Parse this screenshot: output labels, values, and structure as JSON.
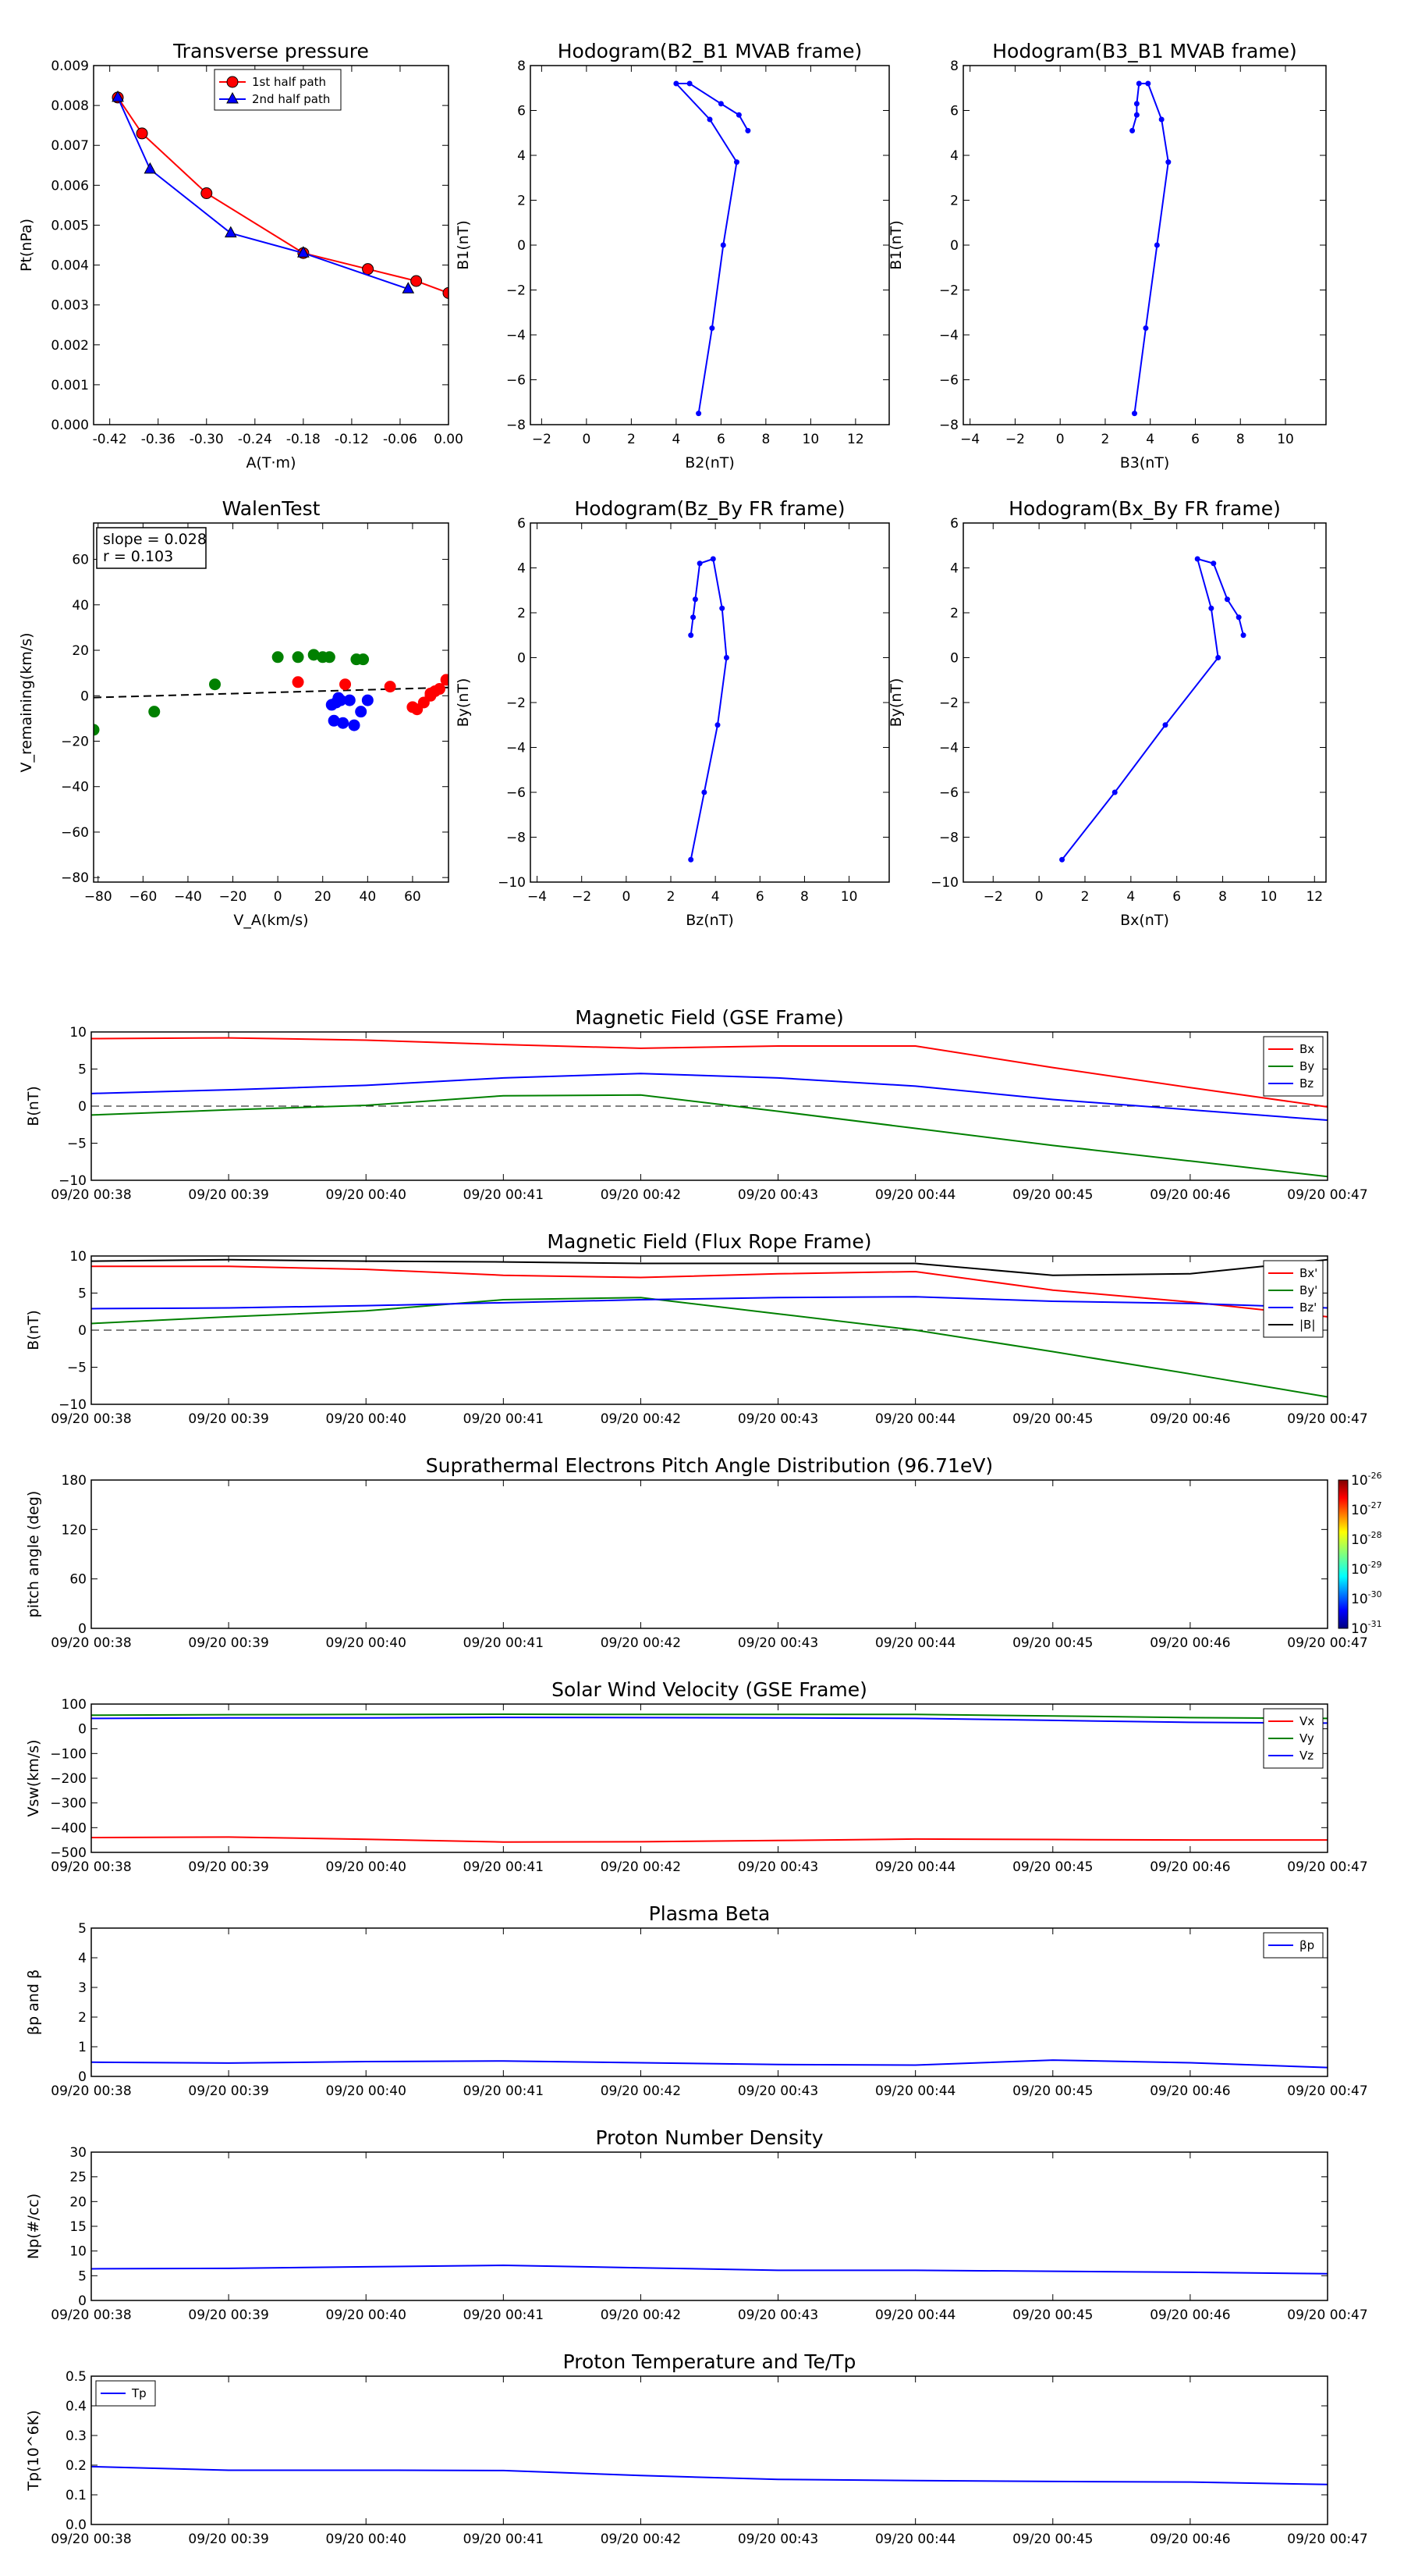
{
  "time_labels": [
    "09/20 00:38",
    "09/20 00:39",
    "09/20 00:40",
    "09/20 00:41",
    "09/20 00:42",
    "09/20 00:43",
    "09/20 00:44",
    "09/20 00:45",
    "09/20 00:46",
    "09/20 00:47"
  ],
  "colors": {
    "red": "#ff0000",
    "green": "#008000",
    "blue": "#0000ff",
    "black": "#000000"
  },
  "chart_data": [
    {
      "id": "transverse-pressure",
      "type": "line",
      "title": "Transverse pressure",
      "xlabel": "A(T·m)",
      "ylabel": "Pt(nPa)",
      "xlim": [
        -0.44,
        0.0
      ],
      "ylim": [
        0,
        0.009
      ],
      "xticks": [
        "-0.42",
        "-0.36",
        "-0.30",
        "-0.24",
        "-0.18",
        "-0.12",
        "-0.06",
        "0.00"
      ],
      "yticks": [
        "0.000",
        "0.001",
        "0.002",
        "0.003",
        "0.004",
        "0.005",
        "0.006",
        "0.007",
        "0.008",
        "0.009"
      ],
      "legend_position": "top-center",
      "series": [
        {
          "name": "1st half path",
          "color": "#ff0000",
          "marker": "circle",
          "x": [
            -0.41,
            -0.38,
            -0.3,
            -0.18,
            -0.1,
            -0.04,
            0.0
          ],
          "y": [
            0.0082,
            0.0073,
            0.0058,
            0.0043,
            0.0039,
            0.0036,
            0.0033
          ]
        },
        {
          "name": "2nd half path",
          "color": "#0000ff",
          "marker": "triangle",
          "x": [
            -0.41,
            -0.37,
            -0.27,
            -0.18,
            -0.05
          ],
          "y": [
            0.0082,
            0.0064,
            0.0048,
            0.0043,
            0.0034
          ]
        }
      ]
    },
    {
      "id": "hodogram-b2-b1",
      "type": "line",
      "title": "Hodogram(B2_B1 MVAB frame)",
      "xlabel": "B2(nT)",
      "ylabel": "B1(nT)",
      "xlim": [
        -2.5,
        13.5
      ],
      "ylim": [
        -8,
        8
      ],
      "xticks": [
        "−2",
        "0",
        "2",
        "4",
        "6",
        "8",
        "10",
        "12"
      ],
      "yticks": [
        "−8",
        "−6",
        "−4",
        "−2",
        "0",
        "2",
        "4",
        "6",
        "8"
      ],
      "series": [
        {
          "color": "#0000ff",
          "marker": "dot",
          "x": [
            5.0,
            5.6,
            6.1,
            6.7,
            5.5,
            4.0,
            4.6,
            6.0,
            6.8,
            7.2
          ],
          "y": [
            -7.5,
            -3.7,
            0.0,
            3.7,
            5.6,
            7.2,
            7.2,
            6.3,
            5.8,
            5.1
          ]
        }
      ]
    },
    {
      "id": "hodogram-b3-b1",
      "type": "line",
      "title": "Hodogram(B3_B1 MVAB frame)",
      "xlabel": "B3(nT)",
      "ylabel": "B1(nT)",
      "xlim": [
        -4.3,
        11.8
      ],
      "ylim": [
        -8,
        8
      ],
      "xticks": [
        "−4",
        "−2",
        "0",
        "2",
        "4",
        "6",
        "8",
        "10"
      ],
      "yticks": [
        "−8",
        "−6",
        "−4",
        "−2",
        "0",
        "2",
        "4",
        "6",
        "8"
      ],
      "series": [
        {
          "color": "#0000ff",
          "marker": "dot",
          "x": [
            3.3,
            3.8,
            4.3,
            4.8,
            4.5,
            3.9,
            3.5,
            3.4,
            3.4,
            3.2
          ],
          "y": [
            -7.5,
            -3.7,
            0.0,
            3.7,
            5.6,
            7.2,
            7.2,
            6.3,
            5.8,
            5.1
          ]
        }
      ]
    },
    {
      "id": "walen-test",
      "type": "scatter",
      "title": "WalenTest",
      "xlabel": "V_A(km/s)",
      "ylabel": "V_remaining(km/s)",
      "xlim": [
        -82,
        76
      ],
      "ylim": [
        -82,
        76
      ],
      "xticks": [
        "−80",
        "−60",
        "−40",
        "−20",
        "0",
        "20",
        "40",
        "60"
      ],
      "yticks": [
        "−80",
        "−60",
        "−40",
        "−20",
        "0",
        "20",
        "40",
        "60"
      ],
      "annotation": [
        "slope = 0.028",
        "r = 0.103"
      ],
      "fit": {
        "slope": 0.028,
        "intercept": 1.5,
        "color": "#000000",
        "style": "dashed"
      },
      "series": [
        {
          "color": "#008000",
          "x": [
            -82,
            -55,
            -28,
            0,
            9,
            16,
            20,
            23,
            35,
            38
          ],
          "y": [
            -15,
            -7,
            5,
            17,
            17,
            18,
            17,
            17,
            16,
            16
          ]
        },
        {
          "color": "#ff0000",
          "x": [
            9,
            30,
            50,
            60,
            62,
            65,
            68,
            70,
            75
          ],
          "y": [
            6,
            5,
            4,
            -5,
            -6,
            -3,
            0,
            2,
            7
          ]
        },
        {
          "color": "#0000ff",
          "x": [
            24,
            26,
            28,
            27,
            25,
            29,
            32,
            34,
            37,
            40
          ],
          "y": [
            -4,
            -3,
            -2,
            -1,
            -11,
            -12,
            -2,
            -13,
            -7,
            -2
          ]
        },
        {
          "color": "#ff0000",
          "x": [
            68,
            72
          ],
          "y": [
            1,
            3
          ]
        }
      ]
    },
    {
      "id": "hodogram-bz-by",
      "type": "line",
      "title": "Hodogram(Bz_By FR frame)",
      "xlabel": "Bz(nT)",
      "ylabel": "By(nT)",
      "xlim": [
        -4.3,
        11.8
      ],
      "ylim": [
        -10,
        6
      ],
      "xticks": [
        "−4",
        "−2",
        "0",
        "2",
        "4",
        "6",
        "8",
        "10"
      ],
      "yticks": [
        "−10",
        "−8",
        "−6",
        "−4",
        "−2",
        "0",
        "2",
        "4",
        "6"
      ],
      "series": [
        {
          "color": "#0000ff",
          "marker": "dot",
          "x": [
            2.9,
            3.5,
            4.1,
            4.5,
            4.3,
            3.9,
            3.3,
            3.1,
            3.0,
            2.9
          ],
          "y": [
            -9.0,
            -6.0,
            -3.0,
            0.0,
            2.2,
            4.4,
            4.2,
            2.6,
            1.8,
            1.0
          ]
        }
      ]
    },
    {
      "id": "hodogram-bx-by",
      "type": "line",
      "title": "Hodogram(Bx_By FR frame)",
      "xlabel": "Bx(nT)",
      "ylabel": "By(nT)",
      "xlim": [
        -3.3,
        12.5
      ],
      "ylim": [
        -10,
        6
      ],
      "xticks": [
        "−2",
        "0",
        "2",
        "4",
        "6",
        "8",
        "10",
        "12"
      ],
      "yticks": [
        "−10",
        "−8",
        "−6",
        "−4",
        "−2",
        "0",
        "2",
        "4",
        "6"
      ],
      "series": [
        {
          "color": "#0000ff",
          "marker": "dot",
          "x": [
            1.0,
            3.3,
            5.5,
            7.8,
            7.5,
            6.9,
            7.6,
            8.2,
            8.7,
            8.9
          ],
          "y": [
            -9.0,
            -6.0,
            -3.0,
            0.0,
            2.2,
            4.4,
            4.2,
            2.6,
            1.8,
            1.0
          ]
        }
      ]
    },
    {
      "id": "mag-gse",
      "type": "line",
      "title": "Magnetic Field (GSE Frame)",
      "xlabel": "",
      "ylabel": "B(nT)",
      "ylim": [
        -10,
        10
      ],
      "yticks": [
        "−10",
        "−5",
        "0",
        "5",
        "10"
      ],
      "zero_line": true,
      "legend_position": "top-right",
      "x": [
        0,
        1,
        2,
        3,
        4,
        5,
        6,
        7,
        8,
        9
      ],
      "series": [
        {
          "name": "Bx",
          "color": "#ff0000",
          "values": [
            9.1,
            9.2,
            8.9,
            8.3,
            7.8,
            8.1,
            8.1,
            5.2,
            2.5,
            -0.1
          ]
        },
        {
          "name": "By",
          "color": "#008000",
          "values": [
            -1.2,
            -0.5,
            0.1,
            1.4,
            1.5,
            -0.7,
            -3.0,
            -5.3,
            -7.4,
            -9.5
          ]
        },
        {
          "name": "Bz",
          "color": "#0000ff",
          "values": [
            1.7,
            2.2,
            2.8,
            3.8,
            4.4,
            3.8,
            2.7,
            0.9,
            -0.5,
            -1.9
          ]
        }
      ]
    },
    {
      "id": "mag-fr",
      "type": "line",
      "title": "Magnetic Field (Flux Rope Frame)",
      "xlabel": "",
      "ylabel": "B(nT)",
      "ylim": [
        -10,
        10
      ],
      "yticks": [
        "−10",
        "−5",
        "0",
        "5",
        "10"
      ],
      "zero_line": true,
      "legend_position": "top-right",
      "x": [
        0,
        1,
        2,
        3,
        4,
        5,
        6,
        7,
        8,
        9
      ],
      "series": [
        {
          "name": "Bx'",
          "color": "#ff0000",
          "values": [
            8.6,
            8.6,
            8.2,
            7.4,
            7.1,
            7.6,
            7.9,
            5.4,
            3.8,
            1.8
          ]
        },
        {
          "name": "By'",
          "color": "#008000",
          "values": [
            0.9,
            1.8,
            2.6,
            4.1,
            4.4,
            2.2,
            0.0,
            -2.9,
            -5.9,
            -9.0
          ]
        },
        {
          "name": "Bz'",
          "color": "#0000ff",
          "values": [
            2.9,
            3.0,
            3.3,
            3.7,
            4.1,
            4.4,
            4.5,
            3.9,
            3.6,
            3.0
          ]
        },
        {
          "name": "|B|",
          "color": "#000000",
          "values": [
            9.3,
            9.5,
            9.3,
            9.2,
            9.0,
            9.0,
            9.0,
            7.4,
            7.6,
            9.5
          ]
        }
      ]
    },
    {
      "id": "pitch-angle",
      "type": "heatmap",
      "title": "Suprathermal Electrons Pitch Angle Distribution (96.71eV)",
      "xlabel": "",
      "ylabel": "pitch angle (deg)",
      "ylim": [
        0,
        180
      ],
      "yticks": [
        "0",
        "60",
        "120",
        "180"
      ],
      "colorbar": {
        "labels": [
          "10",
          "10",
          "10",
          "10",
          "10",
          "10"
        ],
        "exponents": [
          "-26",
          "-27",
          "-28",
          "-29",
          "-30",
          "-31"
        ]
      },
      "values": []
    },
    {
      "id": "solar-wind",
      "type": "line",
      "title": "Solar Wind Velocity (GSE Frame)",
      "xlabel": "",
      "ylabel": "Vsw(km/s)",
      "ylim": [
        -500,
        100
      ],
      "yticks": [
        "−500",
        "−400",
        "−300",
        "−200",
        "−100",
        "0",
        "100"
      ],
      "legend_position": "top-right",
      "x": [
        0,
        1,
        2,
        3,
        4,
        5,
        6,
        7,
        8,
        9
      ],
      "series": [
        {
          "name": "Vx",
          "color": "#ff0000",
          "values": [
            -440,
            -438,
            -447,
            -458,
            -457,
            -452,
            -446,
            -448,
            -450,
            -450
          ]
        },
        {
          "name": "Vy",
          "color": "#008000",
          "values": [
            55,
            57,
            58,
            59,
            58,
            58,
            58,
            52,
            45,
            42
          ]
        },
        {
          "name": "Vz",
          "color": "#0000ff",
          "values": [
            42,
            44,
            44,
            46,
            45,
            44,
            42,
            34,
            26,
            23
          ]
        }
      ]
    },
    {
      "id": "plasma-beta",
      "type": "line",
      "title": "Plasma Beta",
      "xlabel": "",
      "ylabel": "βp and β",
      "ylim": [
        0,
        5
      ],
      "yticks": [
        "0",
        "1",
        "2",
        "3",
        "4",
        "5"
      ],
      "legend_position": "top-right",
      "x": [
        0,
        1,
        2,
        3,
        4,
        5,
        6,
        7,
        8,
        9
      ],
      "series": [
        {
          "name": "βp",
          "color": "#0000ff",
          "values": [
            0.48,
            0.45,
            0.5,
            0.52,
            0.46,
            0.4,
            0.38,
            0.55,
            0.46,
            0.3
          ]
        }
      ]
    },
    {
      "id": "proton-density",
      "type": "line",
      "title": "Proton Number Density",
      "xlabel": "",
      "ylabel": "Np(#/cc)",
      "ylim": [
        0,
        30
      ],
      "yticks": [
        "0",
        "5",
        "10",
        "15",
        "20",
        "25",
        "30"
      ],
      "x": [
        0,
        1,
        2,
        3,
        4,
        5,
        6,
        7,
        8,
        9
      ],
      "series": [
        {
          "color": "#0000ff",
          "values": [
            6.4,
            6.5,
            6.8,
            7.1,
            6.6,
            6.1,
            6.1,
            5.9,
            5.7,
            5.4
          ]
        }
      ]
    },
    {
      "id": "proton-temp",
      "type": "line",
      "title": "Proton Temperature and Te/Tp",
      "xlabel": "",
      "ylabel": "Tp(10^6K)",
      "ylim": [
        0,
        0.5
      ],
      "yticks": [
        "0.0",
        "0.1",
        "0.2",
        "0.3",
        "0.4",
        "0.5"
      ],
      "legend_position": "top-left",
      "x": [
        0,
        1,
        2,
        3,
        4,
        5,
        6,
        7,
        8,
        9
      ],
      "series": [
        {
          "name": "Tp",
          "color": "#0000ff",
          "values": [
            0.195,
            0.183,
            0.183,
            0.182,
            0.165,
            0.152,
            0.148,
            0.145,
            0.143,
            0.135
          ]
        }
      ]
    }
  ]
}
